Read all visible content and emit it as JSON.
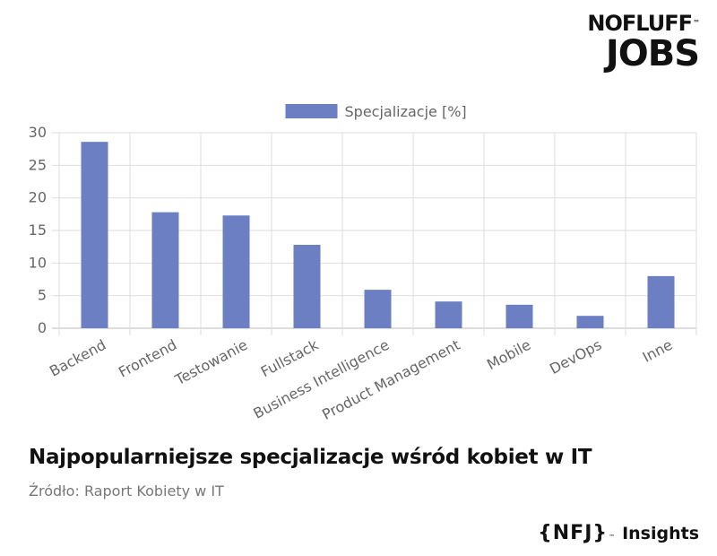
{
  "logo": {
    "line1": "NOFLUFF",
    "line2": "JOBS",
    "tm": "™"
  },
  "caption": {
    "title": "Najpopularniejsze specjalizacje wśród kobiet w IT",
    "source": "Źródło: Raport Kobiety w IT"
  },
  "footer": {
    "brand": "{NFJ}",
    "tm": "™",
    "word": "Insights"
  },
  "colors": {
    "bar": "#6b7fc2",
    "grid": "#dedede",
    "axis_text": "#666666"
  },
  "chart_data": {
    "type": "bar",
    "title": "",
    "xlabel": "",
    "ylabel": "",
    "legend": {
      "label": "Specjalizacje [%]",
      "position": "top-center"
    },
    "categories": [
      "Backend",
      "Frontend",
      "Testowanie",
      "Fullstack",
      "Business Intelligence",
      "Product Management",
      "Mobile",
      "DevOps",
      "Inne"
    ],
    "series": [
      {
        "name": "Specjalizacje [%]",
        "values": [
          28.6,
          17.8,
          17.3,
          12.8,
          5.9,
          4.1,
          3.6,
          1.9,
          8.0
        ]
      }
    ],
    "ylim": [
      0,
      30
    ],
    "yticks": [
      0,
      5,
      10,
      15,
      20,
      25,
      30
    ],
    "grid": true
  }
}
